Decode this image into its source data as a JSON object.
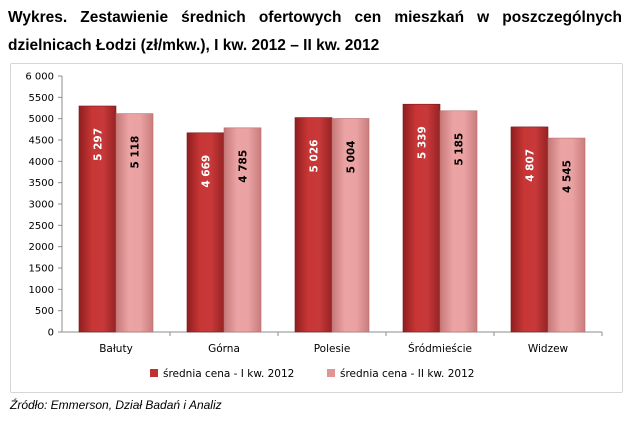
{
  "title": "Wykres. Zestawienie średnich ofertowych cen mieszkań w poszczególnych dzielnicach Łodzi (zł/mkw.), I kw. 2012 – II kw. 2012",
  "source": "Źródło: Emmerson, Dział Badań i Analiz",
  "chart_data": {
    "type": "bar",
    "title": "Wykres. Zestawienie średnich ofertowych cen mieszkań w poszczególnych dzielnicach Łodzi (zł/mkw.), I kw. 2012 – II kw. 2012",
    "categories": [
      "Bałuty",
      "Górna",
      "Polesie",
      "Śródmieście",
      "Widzew"
    ],
    "series": [
      {
        "name": "średnia cena - I kw. 2012",
        "values": [
          5297,
          4669,
          5026,
          5339,
          4807
        ],
        "labels": [
          "5 297",
          "4 669",
          "5 026",
          "5 339",
          "4 807"
        ],
        "color": "#c0302f"
      },
      {
        "name": "średnia cena - II kw. 2012",
        "values": [
          5118,
          4785,
          5004,
          5185,
          4545
        ],
        "labels": [
          "5 118",
          "4 785",
          "5 004",
          "5 185",
          "4 545"
        ],
        "color": "#e29393"
      }
    ],
    "yticks": [
      "0",
      "500",
      "1000",
      "1500",
      "2000",
      "2500",
      "3000",
      "3500",
      "4000",
      "4500",
      "5000",
      "5500",
      "6 000"
    ],
    "ylim": [
      0,
      6000
    ],
    "grid": false,
    "legend_position": "bottom"
  }
}
